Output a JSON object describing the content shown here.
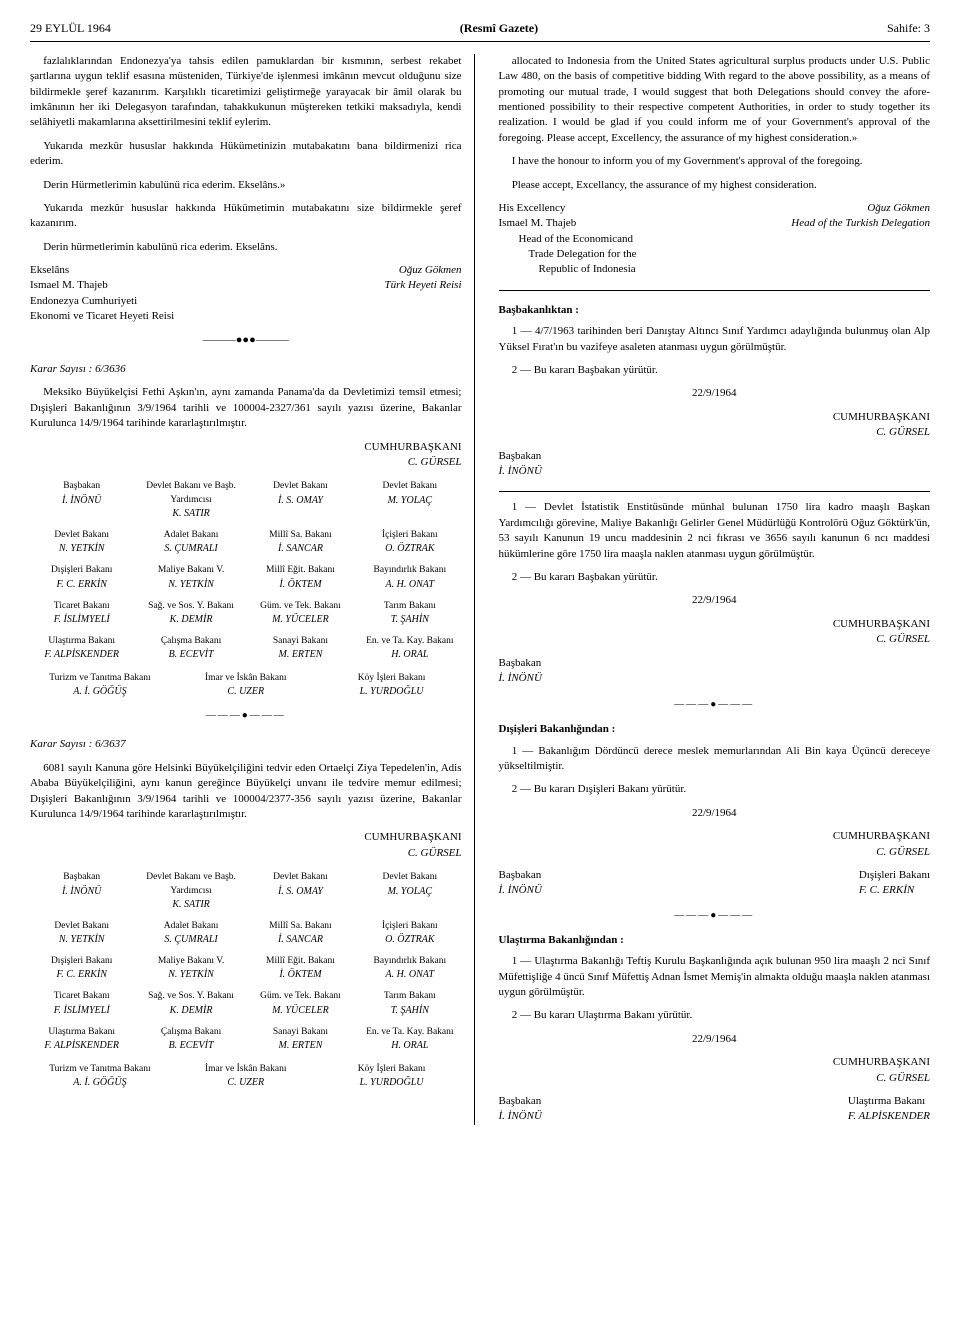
{
  "header": {
    "date": "29 EYLÜL 1964",
    "title": "(Resmî Gazete)",
    "page": "Sahife: 3"
  },
  "leftCol": {
    "para1": "fazlalıklarından Endonezya'ya tahsis edilen pamuklardan bir kısmının, serbest rekabet şartlarına uygun teklif esasına müsteniden, Türkiye'de işlenmesi imkânın mevcut olduğunu size bildirmekle şeref kazanırım. Karşılıklı ticaretimizi geliştirmeğe yarayacak bir âmil olarak bu imkânının her iki Delegasyon tarafından, tahakkukunun müştereken tetkiki maksadıyla, kendi selâhiyetli makamlarına aksettirilmesini teklif eylerim.",
    "para2": "Yukarıda mezkûr hususlar hakkında Hükümetinizin mutabakatını bana bildirmenizi rica ederim.",
    "para3": "Derin Hürmetlerimin kabulünü rica ederim. Ekselâns.»",
    "para4": "Yukarıda mezkûr hususlar hakkında Hükümetimin mutabakatını size bildirmekle şeref kazanırım.",
    "para5": "Derin hürmetlerimin kabulünü rica ederim. Ekselâns.",
    "sig1": {
      "leftLine1": "Ekselâns",
      "leftLine2": "Ismael M. Thajeb",
      "leftLine3": "Endonezya Cumhuriyeti",
      "leftLine4": "Ekonomi ve Ticaret Heyeti Reisi",
      "rightLine1": "Oğuz Gökmen",
      "rightLine2": "Türk Heyeti Reisi"
    },
    "karar1": {
      "title": "Karar Sayısı : 6/3636",
      "body": "Meksiko Büyükelçisi Fethi Aşkın'ın, aynı zamanda Panama'da da Devletimizi temsil etmesi; Dışişleri Bakanlığının 3/9/1964 tarihli ve 100004-2327/361 sayılı yazısı üzerine, Bakanlar Kurulunca 14/9/1964 tarihinde kararlaştırılmıştır.",
      "presidentTitle": "CUMHURBAŞKANI",
      "presidentName": "C. GÜRSEL"
    },
    "ministers": [
      {
        "title": "Başbakan",
        "name": "İ. İNÖNÜ"
      },
      {
        "title": "Devlet Bakanı ve Başb. Yardımcısı",
        "name": "K. SATIR"
      },
      {
        "title": "Devlet Bakanı",
        "name": "İ. S. OMAY"
      },
      {
        "title": "Devlet Bakanı",
        "name": "M. YOLAÇ"
      },
      {
        "title": "Devlet Bakanı",
        "name": "N. YETKİN"
      },
      {
        "title": "Adalet Bakanı",
        "name": "S. ÇUMRALI"
      },
      {
        "title": "Millî Sa. Bakanı",
        "name": "İ. SANCAR"
      },
      {
        "title": "İçişleri Bakanı",
        "name": "O. ÖZTRAK"
      },
      {
        "title": "Dışişleri Bakanı",
        "name": "F. C. ERKİN"
      },
      {
        "title": "Maliye Bakanı V.",
        "name": "N. YETKİN"
      },
      {
        "title": "Millî Eğit. Bakanı",
        "name": "İ. ÖKTEM"
      },
      {
        "title": "Bayındırlık Bakanı",
        "name": "A. H. ONAT"
      },
      {
        "title": "Ticaret Bakanı",
        "name": "F. İSLİMYELİ"
      },
      {
        "title": "Sağ. ve Sos. Y. Bakanı",
        "name": "K. DEMİR"
      },
      {
        "title": "Güm. ve Tek. Bakanı",
        "name": "M. YÜCELER"
      },
      {
        "title": "Tarım Bakanı",
        "name": "T. ŞAHİN"
      },
      {
        "title": "Ulaştırma Bakanı",
        "name": "F. ALPİSKENDER"
      },
      {
        "title": "Çalışma Bakanı",
        "name": "B. ECEVİT"
      },
      {
        "title": "Sanayi Bakanı",
        "name": "M. ERTEN"
      },
      {
        "title": "En. ve Ta. Kay. Bakanı",
        "name": "H. ORAL"
      }
    ],
    "ministersBottom": [
      {
        "title": "Turizm ve Tanıtma Bakanı",
        "name": "A. İ. GÖĞÜŞ"
      },
      {
        "title": "İmar ve İskân Bakanı",
        "name": "C. UZER"
      },
      {
        "title": "Köy İşleri Bakanı",
        "name": "L. YURDOĞLU"
      }
    ],
    "karar2": {
      "title": "Karar Sayısı : 6/3637",
      "body": "6081 sayılı Kanuna göre Helsinki Büyükelçiliğini tedvir eden Ortaelçi Ziya Tepedelen'in, Adis Ababa Büyükelçiliğini, aynı kanun gereğince Büyükelçi unvanı ile tedvire memur edilmesi; Dışişleri Bakanlığının 3/9/1964 tarihli ve 100004/2377-356 sayılı yazısı üzerine, Bakanlar Kurulunca 14/9/1964 tarihinde kararlaştırılmıştır.",
      "presidentTitle": "CUMHURBAŞKANI",
      "presidentName": "C. GÜRSEL"
    }
  },
  "rightCol": {
    "para1": "allocated to Indonesia from the United States agricultural surplus products under U.S. Public Law 480, on the basis of competitive bidding With regard to the above possibility, as a means of promoting our mutual trade, I would suggest that both Delegations should convey the afore-mentioned possibility to their respective competent Authorities, in order to study together its realization. I would be glad if you could inform me of your Government's approval of the foregoing. Please accept, Excellency, the assurance of my highest consideration.»",
    "para2": "I have the honour to inform you of my Government's approval of the foregoing.",
    "para3": "Please accept, Excellancy, the assurance of my highest consideration.",
    "sig1": {
      "leftLine1": "His Excellency",
      "leftLine2": "Ismael M. Thajeb",
      "leftLine3": "Head of the Economicand",
      "leftLine4": "Trade Delegation for the",
      "leftLine5": "Republic of Indonesia",
      "rightLine1": "Oğuz Gökmen",
      "rightLine2": "Head of the Turkish Delegation"
    },
    "basbakan": {
      "title": "Başbakanlıktan :",
      "item1": "1 — 4/7/1963 tarihinden beri Danıştay Altıncı Sınıf Yardımcı adaylığında bulunmuş olan Alp Yüksel Fırat'ın bu vazifeye asaleten atanması uygun görülmüştür.",
      "item2": "2 — Bu kararı Başbakan yürütür.",
      "date": "22/9/1964",
      "presidentTitle": "CUMHURBAŞKANI",
      "presidentName": "C. GÜRSEL",
      "pmTitle": "Başbakan",
      "pmName": "İ. İNÖNÜ"
    },
    "decree2": {
      "item1": "1 — Devlet İstatistik Enstitüsünde münhal bulunan 1750 lira kadro maaşlı Başkan Yardımcılığı görevine, Maliye Bakanlığı Gelirler Genel Müdürlüğü Kontrolörü Oğuz Göktürk'ün, 53 sayılı Kanunun 19 uncu maddesinin 2 nci fıkrası ve 3656 sayılı kanunun 6 ncı maddesi hükümlerine göre 1750 lira maaşla naklen atanması uygun görülmüştür.",
      "item2": "2 — Bu kararı Başbakan yürütür.",
      "date": "22/9/1964",
      "presidentTitle": "CUMHURBAŞKANI",
      "presidentName": "C. GÜRSEL",
      "pmTitle": "Başbakan",
      "pmName": "İ. İNÖNÜ"
    },
    "disisleri": {
      "title": "Dışişleri Bakanlığından :",
      "item1": "1 — Bakanlığım Dördüncü derece meslek memurlarından Ali Bin kaya Üçüncü dereceye yükseltilmiştir.",
      "item2": "2 — Bu kararı Dışişleri Bakanı yürütür.",
      "date": "22/9/1964",
      "presidentTitle": "CUMHURBAŞKANI",
      "presidentName": "C. GÜRSEL",
      "pmTitle": "Başbakan",
      "pmName": "İ. İNÖNÜ",
      "minTitle": "Dışişleri Bakanı",
      "minName": "F. C. ERKİN"
    },
    "ulastirma": {
      "title": "Ulaştırma Bakanlığından :",
      "item1": "1 — Ulaştırma Bakanlığı Teftiş Kurulu Başkanlığında açık bulunan 950 lira maaşlı 2 nci Sınıf Müfettişliğe 4 üncü Sınıf Müfettiş Adnan İsmet Memiş'in almakta olduğu maaşla naklen atanması uygun görülmüştür.",
      "item2": "2 — Bu kararı Ulaştırma Bakanı yürütür.",
      "date": "22/9/1964",
      "presidentTitle": "CUMHURBAŞKANI",
      "presidentName": "C. GÜRSEL",
      "pmTitle": "Başbakan",
      "pmName": "İ. İNÖNÜ",
      "minTitle": "Ulaştırma Bakanı",
      "minName": "F. ALPİSKENDER"
    }
  },
  "divider": "———●———"
}
